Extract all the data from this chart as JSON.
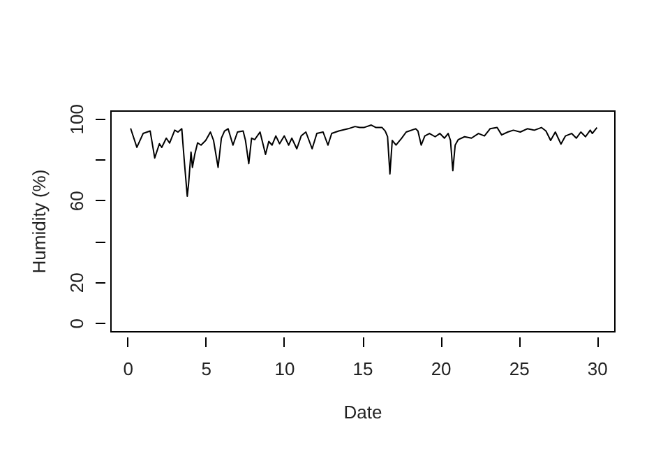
{
  "chart_data": {
    "type": "line",
    "xlabel": "Date",
    "ylabel": "Humidity (%)",
    "xlim": [
      -1.1,
      31.1
    ],
    "ylim": [
      -4,
      104
    ],
    "xticks": [
      0,
      5,
      10,
      15,
      20,
      25,
      30
    ],
    "yticks": [
      0,
      20,
      {
        "value": 40,
        "label": null
      },
      60,
      {
        "value": 80,
        "label": null
      },
      100
    ],
    "grid": false,
    "marker": "none",
    "line_style": "solid",
    "series": [
      {
        "color": "#000000",
        "x": [
          0.2,
          0.6,
          1.0,
          1.45,
          1.74,
          2.04,
          2.19,
          2.48,
          2.69,
          3.02,
          3.23,
          3.47,
          3.62,
          3.82,
          3.9,
          4.06,
          4.15,
          4.3,
          4.48,
          4.7,
          5.0,
          5.3,
          5.5,
          5.79,
          6.0,
          6.2,
          6.43,
          6.74,
          7.03,
          7.39,
          7.54,
          7.75,
          7.93,
          8.13,
          8.47,
          8.82,
          9.03,
          9.24,
          9.48,
          9.72,
          10.02,
          10.3,
          10.5,
          10.82,
          11.1,
          11.4,
          11.8,
          12.1,
          12.5,
          12.81,
          13.05,
          13.5,
          14.1,
          14.54,
          14.84,
          15.1,
          15.58,
          15.88,
          16.27,
          16.47,
          16.62,
          16.77,
          16.92,
          17.16,
          17.52,
          17.81,
          18.41,
          18.56,
          18.77,
          19.0,
          19.3,
          19.66,
          19.96,
          20.25,
          20.49,
          20.64,
          20.79,
          20.94,
          21.14,
          21.54,
          21.98,
          22.43,
          22.81,
          23.17,
          23.62,
          23.91,
          24.3,
          24.66,
          25.1,
          25.55,
          26.0,
          26.45,
          26.74,
          27.04,
          27.34,
          27.7,
          27.99,
          28.38,
          28.68,
          28.97,
          29.27,
          29.57,
          29.7,
          30.0
        ],
        "values": [
          95.2,
          85.9,
          92.7,
          93.9,
          80.7,
          87.7,
          85.9,
          90.4,
          88,
          94.3,
          93.4,
          95,
          80.2,
          62,
          67.7,
          83.6,
          76.1,
          82.5,
          88.1,
          87,
          89.3,
          93.4,
          89.3,
          76.1,
          90.4,
          93.9,
          95,
          87,
          93.4,
          93.9,
          89.3,
          77.9,
          90.4,
          89.7,
          93.4,
          82.5,
          88.8,
          87,
          91.5,
          87.7,
          91.5,
          87,
          90.4,
          85.2,
          91.5,
          93.4,
          85.2,
          92.7,
          93.4,
          87,
          92.7,
          93.9,
          95,
          96.1,
          95.6,
          95.6,
          96.8,
          95.6,
          95.6,
          93.9,
          91.1,
          72.9,
          89.3,
          87,
          90.4,
          93.4,
          95,
          93.9,
          87,
          91.5,
          92.7,
          91.1,
          92.7,
          90.4,
          92.7,
          89.3,
          74.5,
          87,
          89.7,
          91.1,
          90.4,
          92.7,
          91.5,
          95,
          95.6,
          92,
          93.4,
          94.3,
          93.4,
          95,
          94.3,
          95.6,
          93.9,
          89.3,
          93.4,
          87.5,
          91.5,
          92.7,
          90.4,
          93.4,
          91.1,
          94.3,
          92.7,
          95.6
        ]
      }
    ]
  }
}
